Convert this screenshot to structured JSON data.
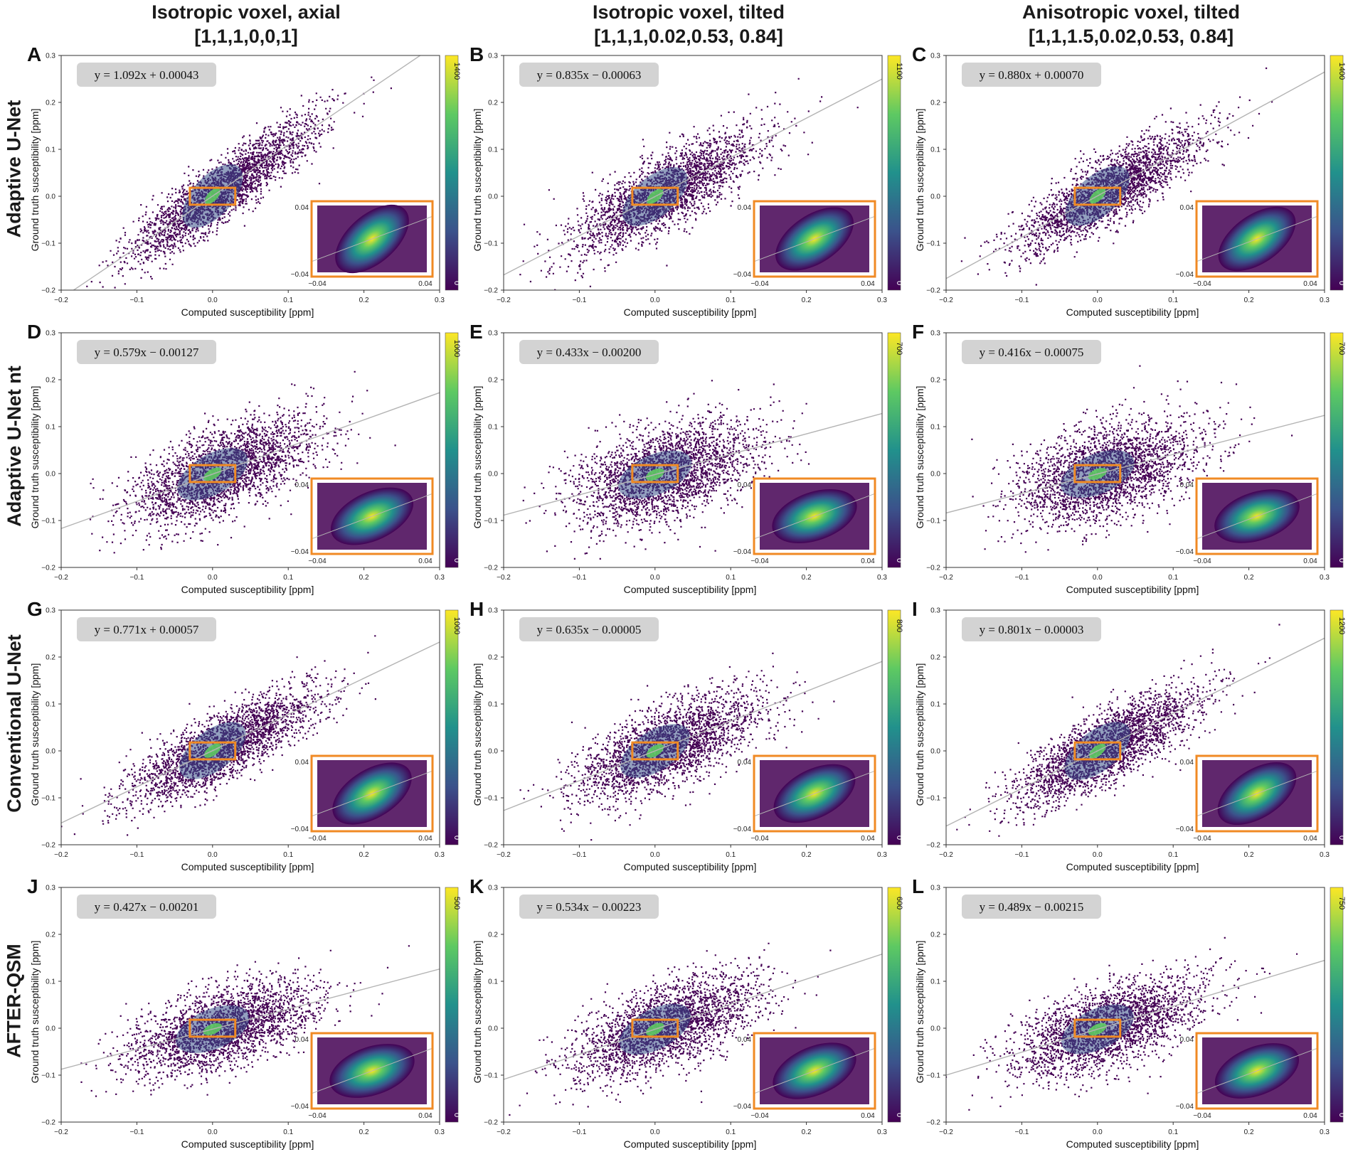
{
  "column_titles": [
    {
      "line1": "Isotropic voxel, axial",
      "line2": "[1,1,1,0,0,1]"
    },
    {
      "line1": "Isotropic voxel, tilted",
      "line2": "[1,1,1,0.02,0.53, 0.84]"
    },
    {
      "line1": "Anisotropic voxel, tilted",
      "line2": "[1,1,1.5,0.02,0.53, 0.84]"
    }
  ],
  "row_labels": [
    "Adaptive U-Net",
    "Adaptive U-Net nt",
    "Conventional U-Net",
    "AFTER-QSM"
  ],
  "colors": {
    "orange": "#F08A24",
    "scatter": "#440154",
    "fit_line": "#b4b4b4",
    "eq_box": "#d3d3d3",
    "axis": "#333333"
  },
  "colorscale": [
    "#440154",
    "#3b528b",
    "#21918c",
    "#5ec962",
    "#fde725"
  ],
  "chart_data": [
    {
      "type": "scatter",
      "panel": "A",
      "equation": "y = 1.092x + 0.00043",
      "slope": 1.092,
      "intercept": 0.00043,
      "cbar_max": "1400",
      "cbar_min": "0",
      "spread": 0.032,
      "xlim": [
        -0.2,
        0.3
      ],
      "ylim": [
        -0.2,
        0.3
      ],
      "xlabel": "Computed susceptibility [ppm]",
      "ylabel": "Ground truth susceptibility [ppm]",
      "xticks": [
        "−0.2",
        "−0.1",
        "0.0",
        "0.1",
        "0.2",
        "0.3"
      ],
      "yticks": [
        "−0.2",
        "−0.1",
        "0.0",
        "0.1",
        "0.2",
        "0.3"
      ],
      "inset": {
        "xlim": [
          -0.04,
          0.04
        ],
        "ylim": [
          -0.04,
          0.04
        ],
        "xticks": [
          "−0.04",
          "0.04"
        ],
        "yticks": [
          "−0.04",
          "0.04"
        ]
      }
    },
    {
      "type": "scatter",
      "panel": "B",
      "equation": "y = 0.835x − 0.00063",
      "slope": 0.835,
      "intercept": -0.00063,
      "cbar_max": "1100",
      "cbar_min": "0",
      "spread": 0.038,
      "xlim": [
        -0.2,
        0.3
      ],
      "ylim": [
        -0.2,
        0.3
      ],
      "xlabel": "Computed susceptibility [ppm]",
      "ylabel": "Ground truth susceptibility [ppm]",
      "xticks": [
        "−0.2",
        "−0.1",
        "0.0",
        "0.1",
        "0.2",
        "0.3"
      ],
      "yticks": [
        "−0.2",
        "−0.1",
        "0.0",
        "0.1",
        "0.2",
        "0.3"
      ],
      "inset": {
        "xlim": [
          -0.04,
          0.04
        ],
        "ylim": [
          -0.04,
          0.04
        ],
        "xticks": [
          "−0.04",
          "0.04"
        ],
        "yticks": [
          "−0.04",
          "0.04"
        ]
      }
    },
    {
      "type": "scatter",
      "panel": "C",
      "equation": "y = 0.880x + 0.00070",
      "slope": 0.88,
      "intercept": 0.0007,
      "cbar_max": "1400",
      "cbar_min": "0",
      "spread": 0.035,
      "xlim": [
        -0.2,
        0.3
      ],
      "ylim": [
        -0.2,
        0.3
      ],
      "xlabel": "Computed susceptibility [ppm]",
      "ylabel": "Ground truth susceptibility [ppm]",
      "xticks": [
        "−0.2",
        "−0.1",
        "0.0",
        "0.1",
        "0.2",
        "0.3"
      ],
      "yticks": [
        "−0.2",
        "−0.1",
        "0.0",
        "0.1",
        "0.2",
        "0.3"
      ],
      "inset": {
        "xlim": [
          -0.04,
          0.04
        ],
        "ylim": [
          -0.04,
          0.04
        ],
        "xticks": [
          "−0.04",
          "0.04"
        ],
        "yticks": [
          "−0.04",
          "0.04"
        ]
      }
    },
    {
      "type": "scatter",
      "panel": "D",
      "equation": "y = 0.579x − 0.00127",
      "slope": 0.579,
      "intercept": -0.00127,
      "cbar_max": "1000",
      "cbar_min": "0",
      "spread": 0.045,
      "xlim": [
        -0.2,
        0.3
      ],
      "ylim": [
        -0.2,
        0.3
      ],
      "xlabel": "Computed susceptibility [ppm]",
      "ylabel": "Ground truth susceptibility [ppm]",
      "xticks": [
        "−0.2",
        "−0.1",
        "0.0",
        "0.1",
        "0.2",
        "0.3"
      ],
      "yticks": [
        "−0.2",
        "−0.1",
        "0.0",
        "0.1",
        "0.2",
        "0.3"
      ],
      "inset": {
        "xlim": [
          -0.04,
          0.04
        ],
        "ylim": [
          -0.04,
          0.04
        ],
        "xticks": [
          "−0.04",
          "0.04"
        ],
        "yticks": [
          "−0.04",
          "0.04"
        ]
      }
    },
    {
      "type": "scatter",
      "panel": "E",
      "equation": "y = 0.433x − 0.00200",
      "slope": 0.433,
      "intercept": -0.002,
      "cbar_max": "700",
      "cbar_min": "0",
      "spread": 0.05,
      "xlim": [
        -0.2,
        0.3
      ],
      "ylim": [
        -0.2,
        0.3
      ],
      "xlabel": "Computed susceptibility [ppm]",
      "ylabel": "Ground truth susceptibility [ppm]",
      "xticks": [
        "−0.2",
        "−0.1",
        "0.0",
        "0.1",
        "0.2",
        "0.3"
      ],
      "yticks": [
        "−0.2",
        "−0.1",
        "0.0",
        "0.1",
        "0.2",
        "0.3"
      ],
      "inset": {
        "xlim": [
          -0.04,
          0.04
        ],
        "ylim": [
          -0.04,
          0.04
        ],
        "xticks": [
          "−0.04",
          "0.04"
        ],
        "yticks": [
          "−0.04",
          "0.04"
        ]
      }
    },
    {
      "type": "scatter",
      "panel": "F",
      "equation": "y = 0.416x − 0.00075",
      "slope": 0.416,
      "intercept": -0.00075,
      "cbar_max": "700",
      "cbar_min": "0",
      "spread": 0.05,
      "xlim": [
        -0.2,
        0.3
      ],
      "ylim": [
        -0.2,
        0.3
      ],
      "xlabel": "Computed susceptibility [ppm]",
      "ylabel": "Ground truth susceptibility [ppm]",
      "xticks": [
        "−0.2",
        "−0.1",
        "0.0",
        "0.1",
        "0.2",
        "0.3"
      ],
      "yticks": [
        "−0.2",
        "−0.1",
        "0.0",
        "0.1",
        "0.2",
        "0.3"
      ],
      "inset": {
        "xlim": [
          -0.04,
          0.04
        ],
        "ylim": [
          -0.04,
          0.04
        ],
        "xticks": [
          "−0.04",
          "0.04"
        ],
        "yticks": [
          "−0.04",
          "0.04"
        ]
      }
    },
    {
      "type": "scatter",
      "panel": "G",
      "equation": "y = 0.771x + 0.00057",
      "slope": 0.771,
      "intercept": 0.00057,
      "cbar_max": "1000",
      "cbar_min": "0",
      "spread": 0.035,
      "xlim": [
        -0.2,
        0.3
      ],
      "ylim": [
        -0.2,
        0.3
      ],
      "xlabel": "Computed susceptibility [ppm]",
      "ylabel": "Ground truth susceptibility [ppm]",
      "xticks": [
        "−0.2",
        "−0.1",
        "0.0",
        "0.1",
        "0.2",
        "0.3"
      ],
      "yticks": [
        "−0.2",
        "−0.1",
        "0.0",
        "0.1",
        "0.2",
        "0.3"
      ],
      "inset": {
        "xlim": [
          -0.04,
          0.04
        ],
        "ylim": [
          -0.04,
          0.04
        ],
        "xticks": [
          "−0.04",
          "0.04"
        ],
        "yticks": [
          "−0.04",
          "0.04"
        ]
      }
    },
    {
      "type": "scatter",
      "panel": "H",
      "equation": "y = 0.635x − 0.00005",
      "slope": 0.635,
      "intercept": -5e-05,
      "cbar_max": "800",
      "cbar_min": "0",
      "spread": 0.042,
      "xlim": [
        -0.2,
        0.3
      ],
      "ylim": [
        -0.2,
        0.3
      ],
      "xlabel": "Computed susceptibility [ppm]",
      "ylabel": "Ground truth susceptibility [ppm]",
      "xticks": [
        "−0.2",
        "−0.1",
        "0.0",
        "0.1",
        "0.2",
        "0.3"
      ],
      "yticks": [
        "−0.2",
        "−0.1",
        "0.0",
        "0.1",
        "0.2",
        "0.3"
      ],
      "inset": {
        "xlim": [
          -0.04,
          0.04
        ],
        "ylim": [
          -0.04,
          0.04
        ],
        "xticks": [
          "−0.04",
          "0.04"
        ],
        "yticks": [
          "−0.04",
          "0.04"
        ]
      }
    },
    {
      "type": "scatter",
      "panel": "I",
      "equation": "y = 0.801x − 0.00003",
      "slope": 0.801,
      "intercept": -3e-05,
      "cbar_max": "1200",
      "cbar_min": "0",
      "spread": 0.038,
      "xlim": [
        -0.2,
        0.3
      ],
      "ylim": [
        -0.2,
        0.3
      ],
      "xlabel": "Computed susceptibility [ppm]",
      "ylabel": "Ground truth susceptibility [ppm]",
      "xticks": [
        "−0.2",
        "−0.1",
        "0.0",
        "0.1",
        "0.2",
        "0.3"
      ],
      "yticks": [
        "−0.2",
        "−0.1",
        "0.0",
        "0.1",
        "0.2",
        "0.3"
      ],
      "inset": {
        "xlim": [
          -0.04,
          0.04
        ],
        "ylim": [
          -0.04,
          0.04
        ],
        "xticks": [
          "−0.04",
          "0.04"
        ],
        "yticks": [
          "−0.04",
          "0.04"
        ]
      }
    },
    {
      "type": "scatter",
      "panel": "J",
      "equation": "y = 0.427x − 0.00201",
      "slope": 0.427,
      "intercept": -0.00201,
      "cbar_max": "500",
      "cbar_min": "0",
      "spread": 0.04,
      "xlim": [
        -0.2,
        0.3
      ],
      "ylim": [
        -0.2,
        0.3
      ],
      "xlabel": "Computed susceptibility [ppm]",
      "ylabel": "Ground truth susceptibility [ppm]",
      "xticks": [
        "−0.2",
        "−0.1",
        "0.0",
        "0.1",
        "0.2",
        "0.3"
      ],
      "yticks": [
        "−0.2",
        "−0.1",
        "0.0",
        "0.1",
        "0.2",
        "0.3"
      ],
      "inset": {
        "xlim": [
          -0.04,
          0.04
        ],
        "ylim": [
          -0.04,
          0.04
        ],
        "xticks": [
          "−0.04",
          "0.04"
        ],
        "yticks": [
          "−0.04",
          "0.04"
        ]
      }
    },
    {
      "type": "scatter",
      "panel": "K",
      "equation": "y = 0.534x − 0.00223",
      "slope": 0.534,
      "intercept": -0.00223,
      "cbar_max": "600",
      "cbar_min": "0",
      "spread": 0.045,
      "xlim": [
        -0.2,
        0.3
      ],
      "ylim": [
        -0.2,
        0.3
      ],
      "xlabel": "Computed susceptibility [ppm]",
      "ylabel": "Ground truth susceptibility [ppm]",
      "xticks": [
        "−0.2",
        "−0.1",
        "0.0",
        "0.1",
        "0.2",
        "0.3"
      ],
      "yticks": [
        "−0.2",
        "−0.1",
        "0.0",
        "0.1",
        "0.2",
        "0.3"
      ],
      "inset": {
        "xlim": [
          -0.04,
          0.04
        ],
        "ylim": [
          -0.04,
          0.04
        ],
        "xticks": [
          "−0.04",
          "0.04"
        ],
        "yticks": [
          "−0.04",
          "0.04"
        ]
      }
    },
    {
      "type": "scatter",
      "panel": "L",
      "equation": "y = 0.489x − 0.00215",
      "slope": 0.489,
      "intercept": -0.00215,
      "cbar_max": "750",
      "cbar_min": "0",
      "spread": 0.042,
      "xlim": [
        -0.2,
        0.3
      ],
      "ylim": [
        -0.2,
        0.3
      ],
      "xlabel": "Computed susceptibility [ppm]",
      "ylabel": "Ground truth susceptibility [ppm]",
      "xticks": [
        "−0.2",
        "−0.1",
        "0.0",
        "0.1",
        "0.2",
        "0.3"
      ],
      "yticks": [
        "−0.2",
        "−0.1",
        "0.0",
        "0.1",
        "0.2",
        "0.3"
      ],
      "inset": {
        "xlim": [
          -0.04,
          0.04
        ],
        "ylim": [
          -0.04,
          0.04
        ],
        "xticks": [
          "−0.04",
          "0.04"
        ],
        "yticks": [
          "−0.04",
          "0.04"
        ]
      }
    }
  ]
}
